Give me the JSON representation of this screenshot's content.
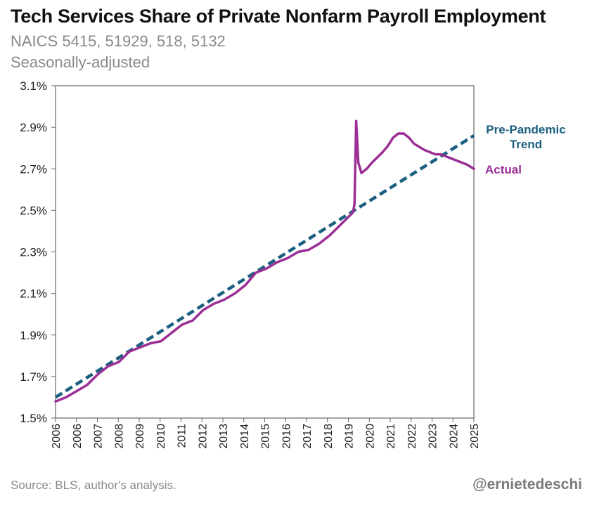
{
  "header": {
    "title": "Tech Services Share of Private Nonfarm Payroll Employment",
    "subtitle1": "NAICS 5415, 51929, 518, 5132",
    "subtitle2": "Seasonally-adjusted"
  },
  "footer": {
    "source": "Source: BLS, author's analysis.",
    "handle": "@ernietedeschi"
  },
  "colors": {
    "actual": "#9b2f96",
    "trend": "#1b5f7f",
    "axis": "#666666",
    "text": "#222222"
  },
  "chart_data": {
    "type": "line",
    "title": "Tech Services Share of Private Nonfarm Payroll Employment",
    "subtitle": "NAICS 5415, 51929, 518, 5132 — Seasonally-adjusted",
    "xlabel": "",
    "ylabel": "",
    "xlim": [
      2006.0,
      2025.83
    ],
    "ylim": [
      1.5,
      3.1
    ],
    "yticks": [
      1.5,
      1.7,
      1.9,
      2.1,
      2.3,
      2.5,
      2.7,
      2.9,
      3.1
    ],
    "ytick_labels": [
      "1.5%",
      "1.7%",
      "1.9%",
      "2.1%",
      "2.3%",
      "2.5%",
      "2.7%",
      "2.9%",
      "3.1%"
    ],
    "xtick_labels": [
      "2006",
      "2006",
      "2007",
      "2008",
      "2009",
      "2010",
      "2011",
      "2012",
      "2013",
      "2014",
      "2015",
      "2016",
      "2017",
      "2018",
      "2019",
      "2020",
      "2021",
      "2022",
      "2023",
      "2024",
      "2025"
    ],
    "grid": false,
    "series": [
      {
        "name": "Actual",
        "label": "Actual",
        "style": "solid",
        "x": [
          2006.0,
          2006.5,
          2007.0,
          2007.5,
          2008.0,
          2008.5,
          2009.0,
          2009.5,
          2010.0,
          2010.5,
          2011.0,
          2011.5,
          2012.0,
          2012.5,
          2013.0,
          2013.5,
          2014.0,
          2014.5,
          2015.0,
          2015.5,
          2016.0,
          2016.5,
          2017.0,
          2017.5,
          2018.0,
          2018.5,
          2019.0,
          2019.5,
          2019.9,
          2020.1,
          2020.17,
          2020.25,
          2020.35,
          2020.5,
          2020.75,
          2021.0,
          2021.5,
          2021.75,
          2022.0,
          2022.25,
          2022.5,
          2022.75,
          2023.0,
          2023.5,
          2024.0,
          2024.25,
          2024.5,
          2025.0,
          2025.5,
          2025.83
        ],
        "values": [
          1.58,
          1.6,
          1.63,
          1.66,
          1.71,
          1.75,
          1.77,
          1.82,
          1.84,
          1.86,
          1.87,
          1.91,
          1.95,
          1.97,
          2.02,
          2.05,
          2.07,
          2.1,
          2.14,
          2.2,
          2.22,
          2.25,
          2.27,
          2.3,
          2.31,
          2.34,
          2.38,
          2.43,
          2.47,
          2.49,
          2.53,
          2.93,
          2.73,
          2.68,
          2.7,
          2.73,
          2.78,
          2.81,
          2.85,
          2.87,
          2.87,
          2.85,
          2.82,
          2.79,
          2.77,
          2.77,
          2.76,
          2.74,
          2.72,
          2.7
        ]
      },
      {
        "name": "Pre-Pandemic Trend",
        "label_line1": "Pre-Pandemic",
        "label_line2": "Trend",
        "style": "dashed",
        "x": [
          2006.0,
          2025.83
        ],
        "values": [
          1.6,
          2.86
        ]
      }
    ]
  }
}
